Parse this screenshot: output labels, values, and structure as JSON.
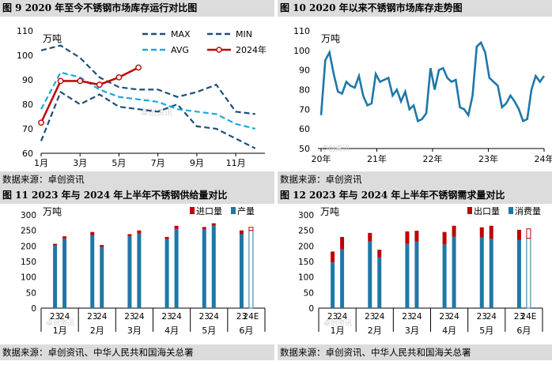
{
  "fig9": {
    "title": "图 9 2020 年至今不锈钢市场库存运行对比图",
    "source": "数据来源：卓创资讯",
    "unit": "万吨",
    "watermark": "卓创资讯",
    "legend": {
      "max": "MAX",
      "min": "MIN",
      "avg": "AVG",
      "y2024": "2024年"
    }
  },
  "fig10": {
    "title": "图 10 2020 年以来不锈钢市场库存走势图",
    "source": "数据来源：卓创资讯",
    "unit": "万吨",
    "watermark": "卓创资讯"
  },
  "fig11": {
    "title": "图 11 2023 年与 2024 年上半年不锈钢供给量对比",
    "source": "数据来源：卓创资讯、中华人民共和国海关总署",
    "unit": "万吨",
    "watermark": "卓创资讯",
    "legend": {
      "top": "进口量",
      "bottom": "产量"
    }
  },
  "fig12": {
    "title": "图 12 2023 年与 2024 年上半年不锈钢需求量对比",
    "source": "数据来源：卓创资讯、中华人民共和国海关总署",
    "unit": "万吨",
    "watermark": "卓创资讯",
    "legend": {
      "top": "出口量",
      "bottom": "消费量"
    }
  },
  "chart_data": [
    {
      "id": "fig9",
      "type": "line",
      "x_ticks": [
        "1月",
        "3月",
        "5月",
        "7月",
        "9月",
        "11月"
      ],
      "x_positions": [
        1,
        3,
        5,
        7,
        9,
        11
      ],
      "ylim": [
        60,
        110
      ],
      "yticks": [
        60,
        70,
        80,
        90,
        100,
        110
      ],
      "grid": false,
      "legend_position": "top-right",
      "series": [
        {
          "name": "MAX",
          "style": "dashed",
          "color": "#1f4e79",
          "x": [
            1,
            2,
            3,
            4,
            5,
            6,
            7,
            8,
            9,
            10,
            11,
            12
          ],
          "values": [
            102,
            104,
            99,
            91,
            87,
            86,
            86,
            83,
            85,
            88,
            77,
            76
          ]
        },
        {
          "name": "MIN",
          "style": "dashed",
          "color": "#1f4e79",
          "x": [
            1,
            2,
            3,
            4,
            5,
            6,
            7,
            8,
            9,
            10,
            11,
            12
          ],
          "values": [
            65,
            85,
            80,
            84,
            79,
            78,
            77,
            80,
            71,
            70,
            66,
            62
          ]
        },
        {
          "name": "AVG",
          "style": "dashed",
          "color": "#19a9e0",
          "x": [
            1,
            2,
            3,
            4,
            5,
            6,
            7,
            8,
            9,
            10,
            11,
            12
          ],
          "values": [
            78,
            93,
            91,
            86,
            83,
            82,
            81,
            78,
            77,
            76,
            72,
            70
          ]
        },
        {
          "name": "2024年",
          "style": "solid-marker",
          "color": "#c00000",
          "x": [
            1,
            2,
            3,
            4,
            5,
            6
          ],
          "values": [
            72.5,
            89.5,
            89.5,
            88,
            91,
            95
          ]
        }
      ]
    },
    {
      "id": "fig10",
      "type": "line",
      "x_ticks": [
        "20年",
        "21年",
        "22年",
        "23年",
        "24年"
      ],
      "ylim": [
        50,
        110
      ],
      "yticks": [
        50,
        60,
        70,
        80,
        90,
        100,
        110
      ],
      "grid": false,
      "series": [
        {
          "name": "库存",
          "color": "#1f77a8",
          "values": [
            67,
            95,
            99,
            88,
            79,
            78,
            84,
            82,
            81,
            87,
            77,
            72,
            73,
            88,
            84,
            85,
            86,
            77,
            80,
            74,
            79,
            70,
            72,
            64,
            65,
            68,
            91,
            80,
            90,
            91,
            86,
            84,
            85,
            71,
            70,
            67,
            77,
            102,
            104,
            99,
            86,
            84,
            82,
            71,
            73,
            77,
            74,
            70,
            64,
            65,
            80,
            87,
            84,
            87
          ]
        }
      ]
    },
    {
      "id": "fig11",
      "type": "bar",
      "stacked": true,
      "groups": [
        "1月",
        "2月",
        "3月",
        "4月",
        "5月",
        "6月"
      ],
      "bar_labels": [
        "23",
        "24",
        "23",
        "24",
        "23",
        "24",
        "23",
        "24",
        "23",
        "24",
        "23",
        "24E"
      ],
      "ylim": [
        0,
        300
      ],
      "yticks": [
        0,
        50,
        100,
        150,
        200,
        250,
        300
      ],
      "legend_position": "top-right",
      "series": [
        {
          "name": "产量",
          "color": "#1f77a8",
          "values": [
            202,
            224,
            235,
            197,
            232,
            240,
            222,
            255,
            254,
            265,
            238,
            250
          ]
        },
        {
          "name": "进口量",
          "color": "#c00000",
          "values": [
            5,
            7,
            10,
            6,
            6,
            10,
            7,
            10,
            7,
            8,
            12,
            10
          ]
        }
      ],
      "estimate_index": 11
    },
    {
      "id": "fig12",
      "type": "bar",
      "stacked": true,
      "groups": [
        "1月",
        "2月",
        "3月",
        "4月",
        "5月",
        "6月"
      ],
      "bar_labels": [
        "23",
        "24",
        "23",
        "24",
        "23",
        "24",
        "23",
        "24",
        "23",
        "24",
        "23",
        "24E"
      ],
      "ylim": [
        0,
        300
      ],
      "yticks": [
        0,
        50,
        100,
        150,
        200,
        250,
        300
      ],
      "legend_position": "top-right",
      "series": [
        {
          "name": "消费量",
          "color": "#1f77a8",
          "values": [
            147,
            189,
            215,
            163,
            207,
            214,
            205,
            230,
            227,
            223,
            219,
            225
          ]
        },
        {
          "name": "出口量",
          "color": "#c00000",
          "values": [
            35,
            40,
            27,
            25,
            40,
            35,
            40,
            35,
            33,
            42,
            33,
            30
          ]
        }
      ],
      "estimate_index": 11
    }
  ]
}
